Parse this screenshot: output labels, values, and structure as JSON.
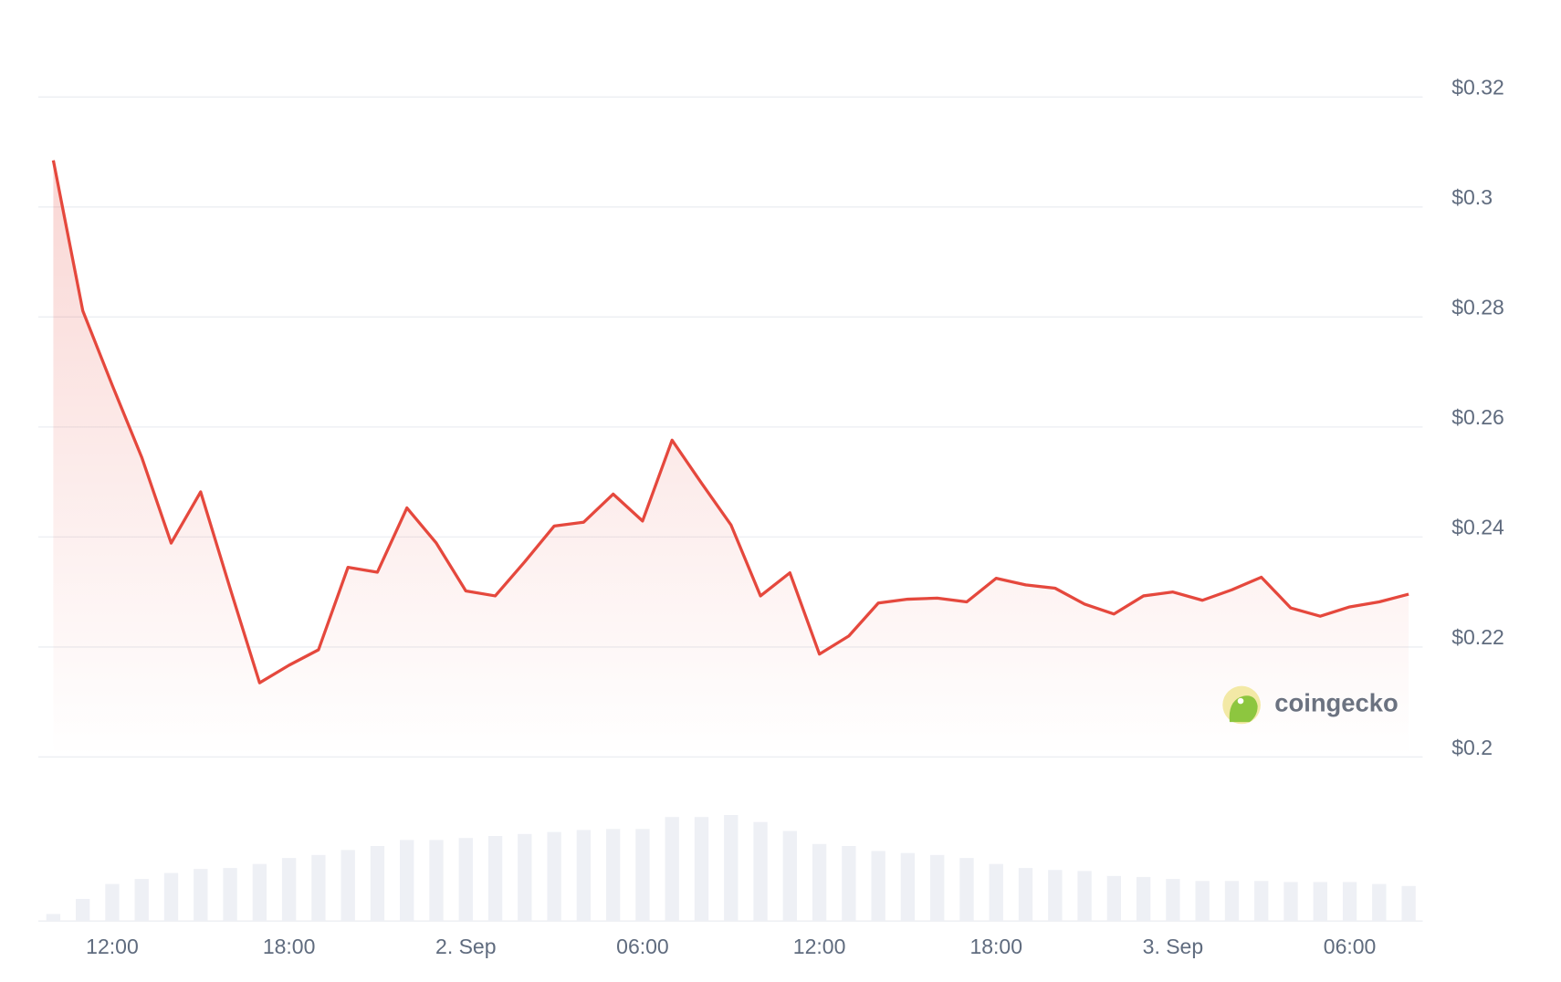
{
  "chart_data": {
    "type": "line",
    "categories": [
      null,
      null,
      "12:00",
      null,
      null,
      null,
      null,
      null,
      "18:00",
      null,
      null,
      null,
      null,
      null,
      "2. Sep",
      null,
      null,
      null,
      null,
      null,
      "06:00",
      null,
      null,
      null,
      null,
      null,
      "12:00",
      null,
      null,
      null,
      null,
      null,
      "18:00",
      null,
      null,
      null,
      null,
      null,
      "3. Sep",
      null,
      null,
      null,
      null,
      null,
      "06:00",
      null,
      null
    ],
    "series": [
      {
        "color": "#e5483d",
        "values": [
          0.3085,
          0.2811,
          0.2676,
          0.2545,
          0.2389,
          0.2482,
          0.2307,
          0.2135,
          0.2167,
          0.2195,
          0.2345,
          0.2336,
          0.2453,
          0.2389,
          0.2302,
          0.2293,
          0.2355,
          0.242,
          0.2427,
          0.2478,
          0.2429,
          0.2576,
          0.2498,
          0.2422,
          0.2293,
          0.2335,
          0.2187,
          0.222,
          0.228,
          0.2287,
          0.2289,
          0.2282,
          0.2325,
          0.2313,
          0.2307,
          0.2278,
          0.226,
          0.2293,
          0.23,
          0.2285,
          0.2304,
          0.2327,
          0.2271,
          0.2256,
          0.2273,
          0.2282,
          0.2296
        ]
      }
    ],
    "volume": {
      "color": "#eef0f5",
      "values": [
        7,
        22,
        37,
        42,
        48,
        52,
        53,
        57,
        63,
        66,
        71,
        75,
        81,
        81,
        83,
        85,
        87,
        89,
        91,
        92,
        92,
        104,
        104,
        106,
        99,
        90,
        77,
        75,
        70,
        68,
        66,
        63,
        57,
        53,
        51,
        50,
        45,
        44,
        42,
        40,
        40,
        40,
        39,
        39,
        39,
        37,
        35
      ]
    },
    "ylim": [
      0.2,
      0.32
    ],
    "yticks": [
      {
        "value": 0.2,
        "label": "$0.2"
      },
      {
        "value": 0.22,
        "label": "$0.22"
      },
      {
        "value": 0.24,
        "label": "$0.24"
      },
      {
        "value": 0.26,
        "label": "$0.26"
      },
      {
        "value": 0.28,
        "label": "$0.28"
      },
      {
        "value": 0.3,
        "label": "$0.3"
      },
      {
        "value": 0.32,
        "label": "$0.32"
      }
    ],
    "grid": true,
    "watermark": "coingecko"
  }
}
